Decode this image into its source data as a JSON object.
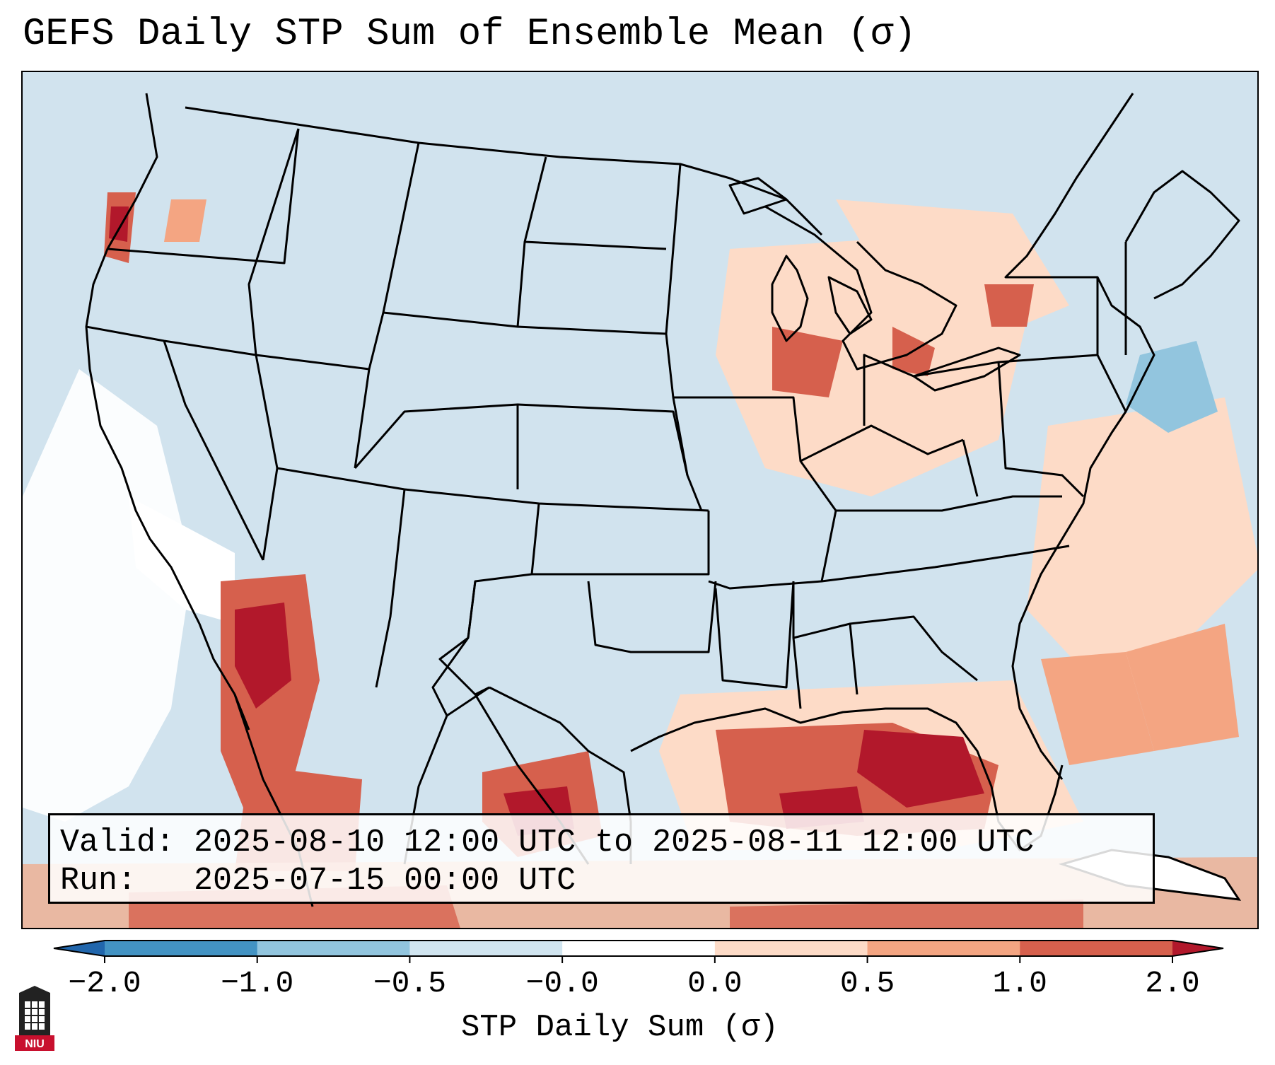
{
  "title": "GEFS Daily STP Sum of Ensemble Mean (σ)",
  "info": {
    "valid_label": "Valid:",
    "valid_value": "2025-08-10 12:00 UTC to 2025-08-11 12:00 UTC",
    "run_label": "Run:",
    "run_value": "2025-07-15 00:00 UTC"
  },
  "colorbar": {
    "label": "STP Daily Sum (σ)",
    "ticks": [
      "−2.0",
      "−1.0",
      "−0.5",
      "−0.0",
      "0.0",
      "0.5",
      "1.0",
      "2.0"
    ],
    "bins": [
      {
        "range": "< -2.0",
        "color": "#2166ac"
      },
      {
        "range": "-2.0 to -1.0",
        "color": "#4393c3"
      },
      {
        "range": "-1.0 to -0.5",
        "color": "#92c5de"
      },
      {
        "range": "-0.5 to -0.0",
        "color": "#d1e5f0"
      },
      {
        "range": "-0.0 to 0.0",
        "color": "#ffffff"
      },
      {
        "range": "0.0 to 0.5",
        "color": "#fddbc7"
      },
      {
        "range": "0.5 to 1.0",
        "color": "#f4a582"
      },
      {
        "range": "1.0 to 2.0",
        "color": "#d6604d"
      },
      {
        "range": "> 2.0",
        "color": "#b2182b"
      }
    ]
  },
  "logo": {
    "text": "NIU",
    "icon": "niu-logo-icon"
  },
  "map": {
    "projection": "Lambert Conformal, CONUS",
    "background_color": "#d1e3ee",
    "boundaries": "US states, Canada, Mexico, Cuba coastlines"
  }
}
